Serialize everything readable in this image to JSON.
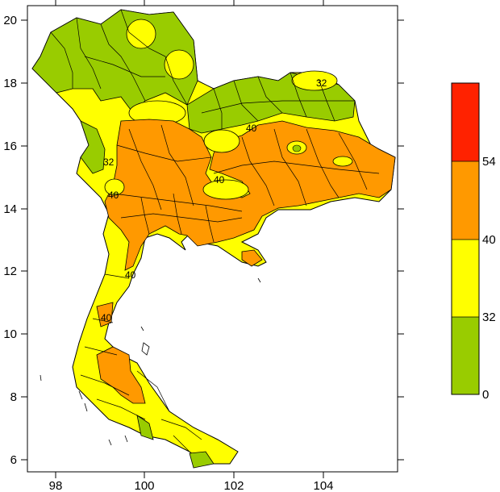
{
  "map": {
    "lon_range": [
      97.3,
      105.7
    ],
    "lat_range": [
      5.7,
      20.5
    ],
    "x_ticks": [
      "98",
      "100",
      "102",
      "104"
    ],
    "y_ticks": [
      "6",
      "8",
      "10",
      "12",
      "14",
      "16",
      "18",
      "20"
    ],
    "contour_labels": [
      "40",
      "40",
      "40",
      "32",
      "32",
      "40",
      "40"
    ]
  },
  "colorbar": {
    "bins": [
      {
        "low": 0,
        "high": 32,
        "color": "#99cc00"
      },
      {
        "low": 32,
        "high": 40,
        "color": "#ffff00"
      },
      {
        "low": 40,
        "high": 54,
        "color": "#ff9900"
      },
      {
        "low": 54,
        "high": null,
        "color": "#ff2200"
      }
    ],
    "labels": [
      "54",
      "40",
      "32",
      "0"
    ]
  }
}
